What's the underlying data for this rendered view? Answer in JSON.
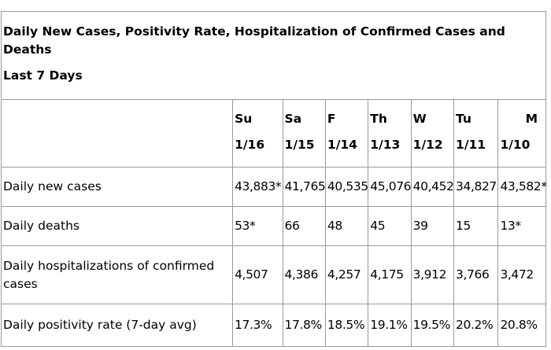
{
  "title": "Daily New Cases, Positivity Rate, Hospitalization of Confirmed Cases and Deaths",
  "subtitle": "Last 7 Days",
  "days": [
    {
      "abbr": "Su",
      "date": "1/16"
    },
    {
      "abbr": "Sa",
      "date": "1/15"
    },
    {
      "abbr": "F",
      "date": "1/14"
    },
    {
      "abbr": "Th",
      "date": "1/13"
    },
    {
      "abbr": "W",
      "date": "1/12"
    },
    {
      "abbr": "Tu",
      "date": "1/11"
    },
    {
      "abbr": "M",
      "date": "1/10"
    }
  ],
  "rows": [
    {
      "label": "Daily new cases",
      "values": [
        "43,883*",
        "41,765",
        "40,535",
        "45,076",
        "40,452",
        "34,827",
        "43,582*"
      ]
    },
    {
      "label": "Daily deaths",
      "values": [
        "53*",
        "66",
        "48",
        "45",
        "39",
        "15",
        "13*"
      ]
    },
    {
      "label": "Daily hospitalizations of confirmed cases",
      "values": [
        "4,507",
        "4,386",
        "4,257",
        "4,175",
        "3,912",
        "3,766",
        "3,472"
      ]
    },
    {
      "label": "Daily positivity rate (7-day avg)",
      "values": [
        "17.3%",
        "17.8%",
        "18.5%",
        "19.1%",
        "19.5%",
        "20.2%",
        "20.8%"
      ]
    }
  ]
}
